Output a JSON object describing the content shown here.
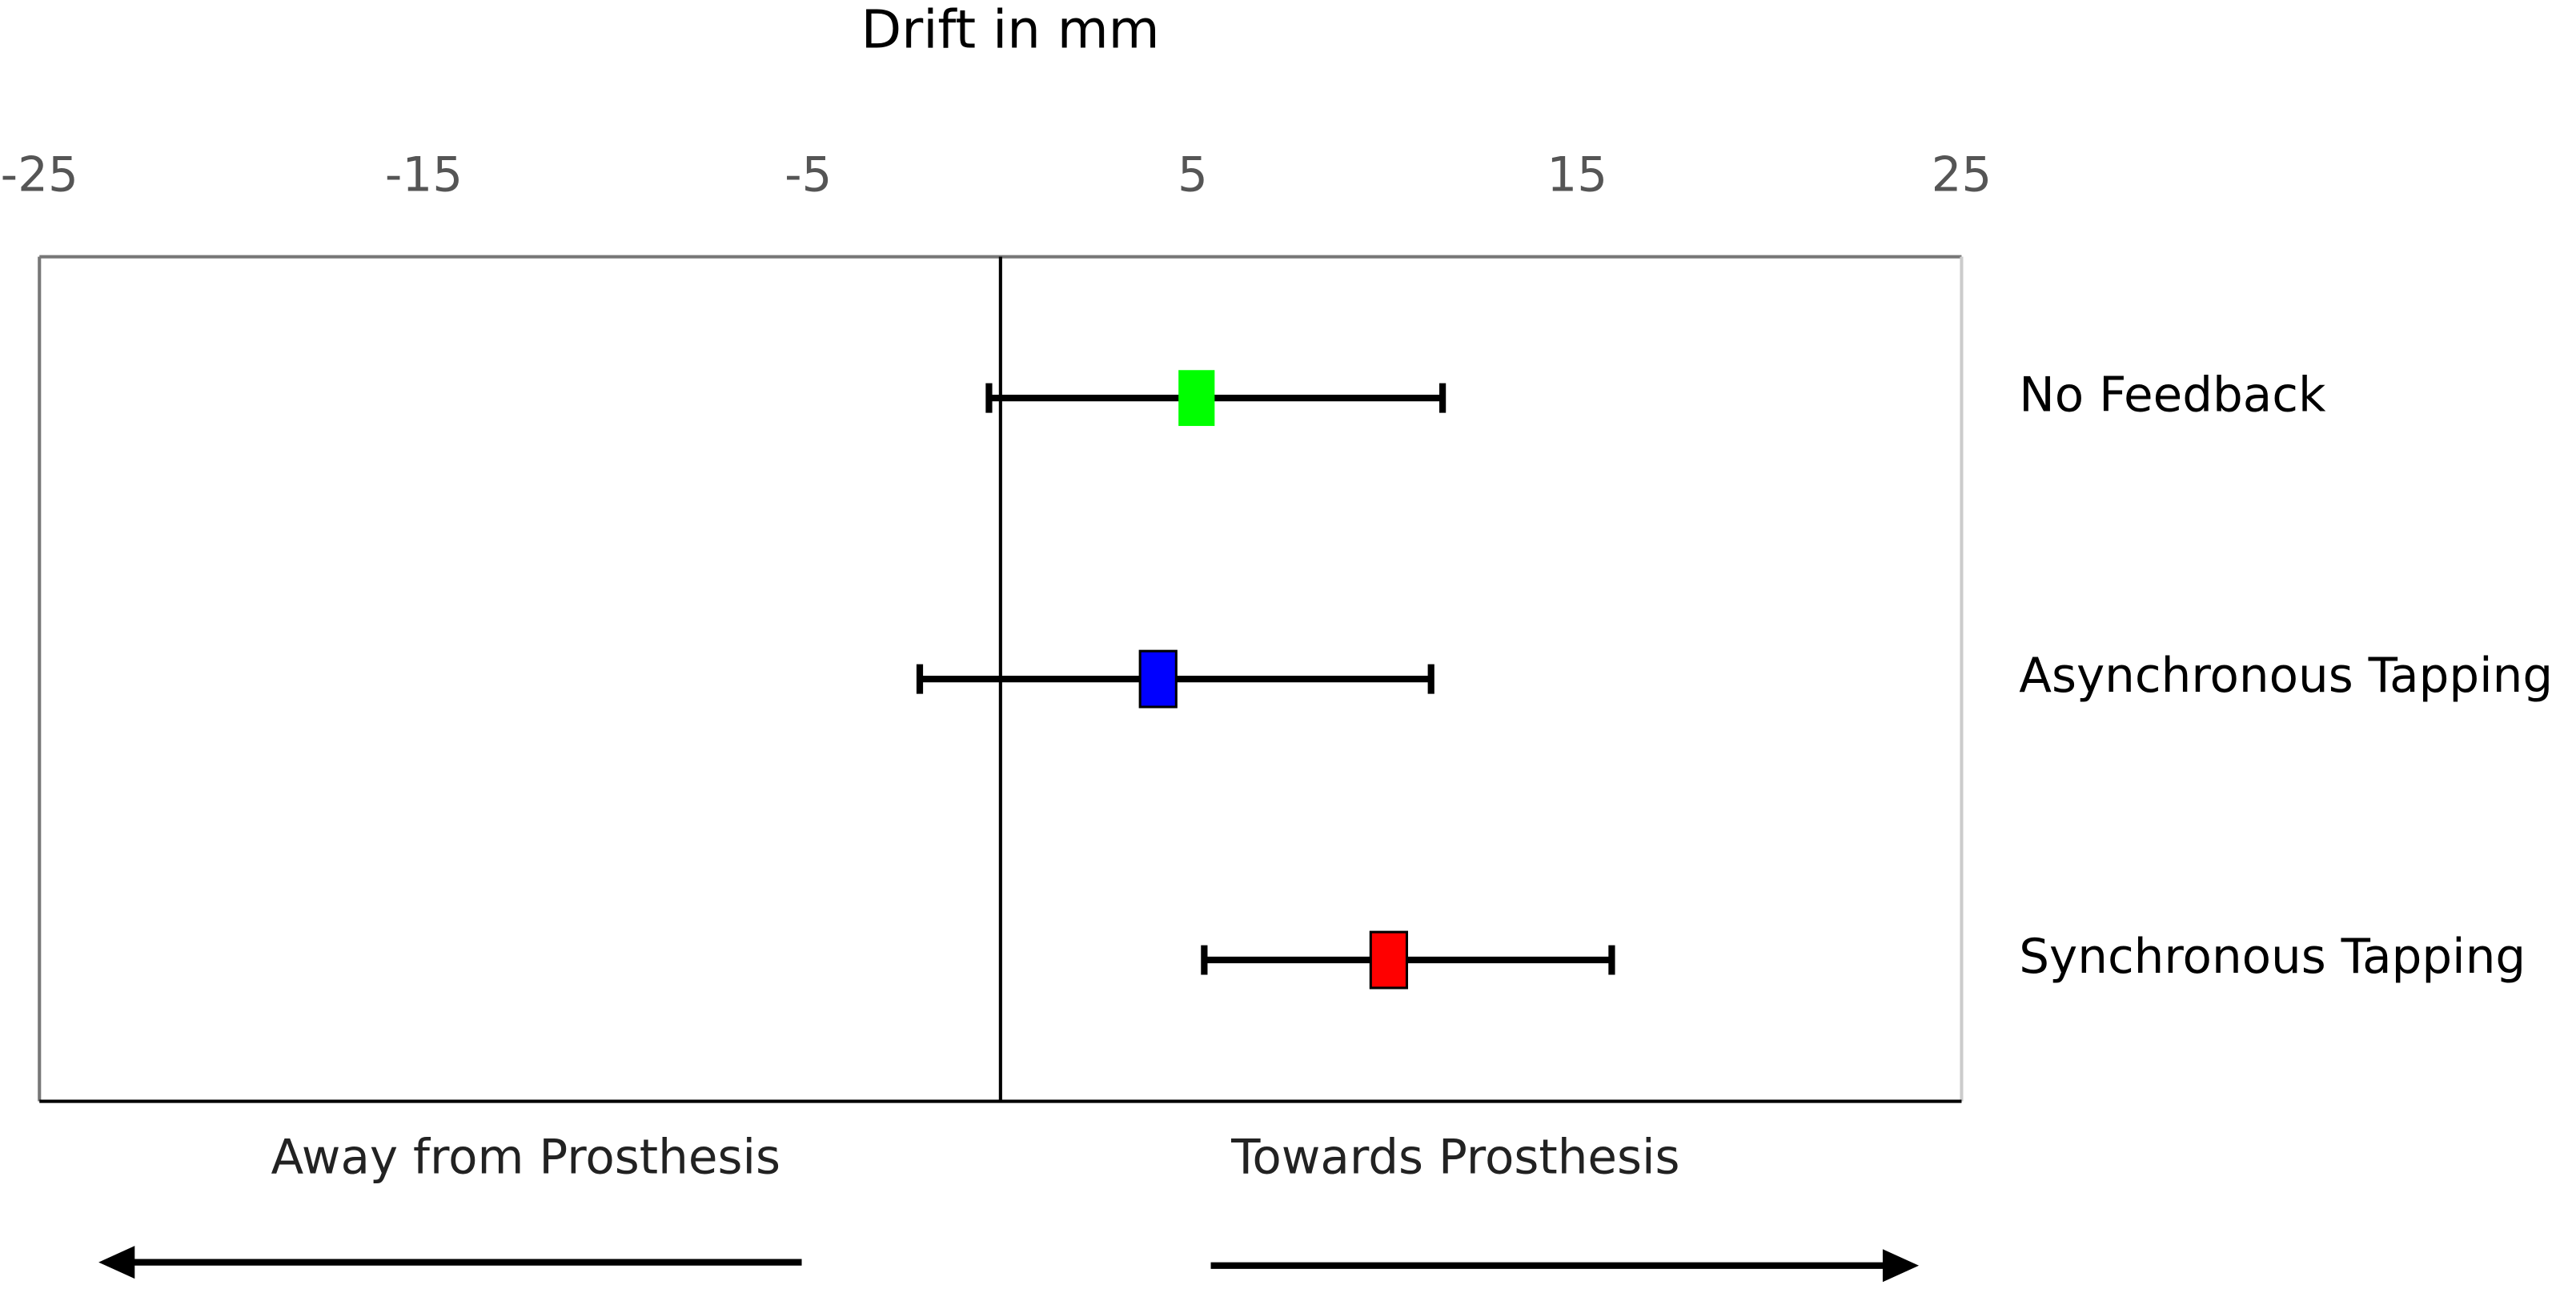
{
  "chart_data": {
    "type": "errorbar",
    "title": "Drift in mm",
    "categories": [
      "No Feedback",
      "Asynchronous Tapping",
      "Synchronous Tapping"
    ],
    "values": [
      5.1,
      4.1,
      10.1
    ],
    "error_low": [
      5.4,
      6.2,
      4.8
    ],
    "error_high": [
      6.4,
      7.1,
      5.8
    ],
    "colors": [
      "#00ff00",
      "#0000ff",
      "#ff0000"
    ],
    "xlim": [
      -25,
      25
    ],
    "xticks": [
      -25,
      -15,
      -5,
      5,
      15,
      25
    ],
    "annotations": [
      "Away from Prosthesis",
      "Towards Prosthesis"
    ]
  }
}
